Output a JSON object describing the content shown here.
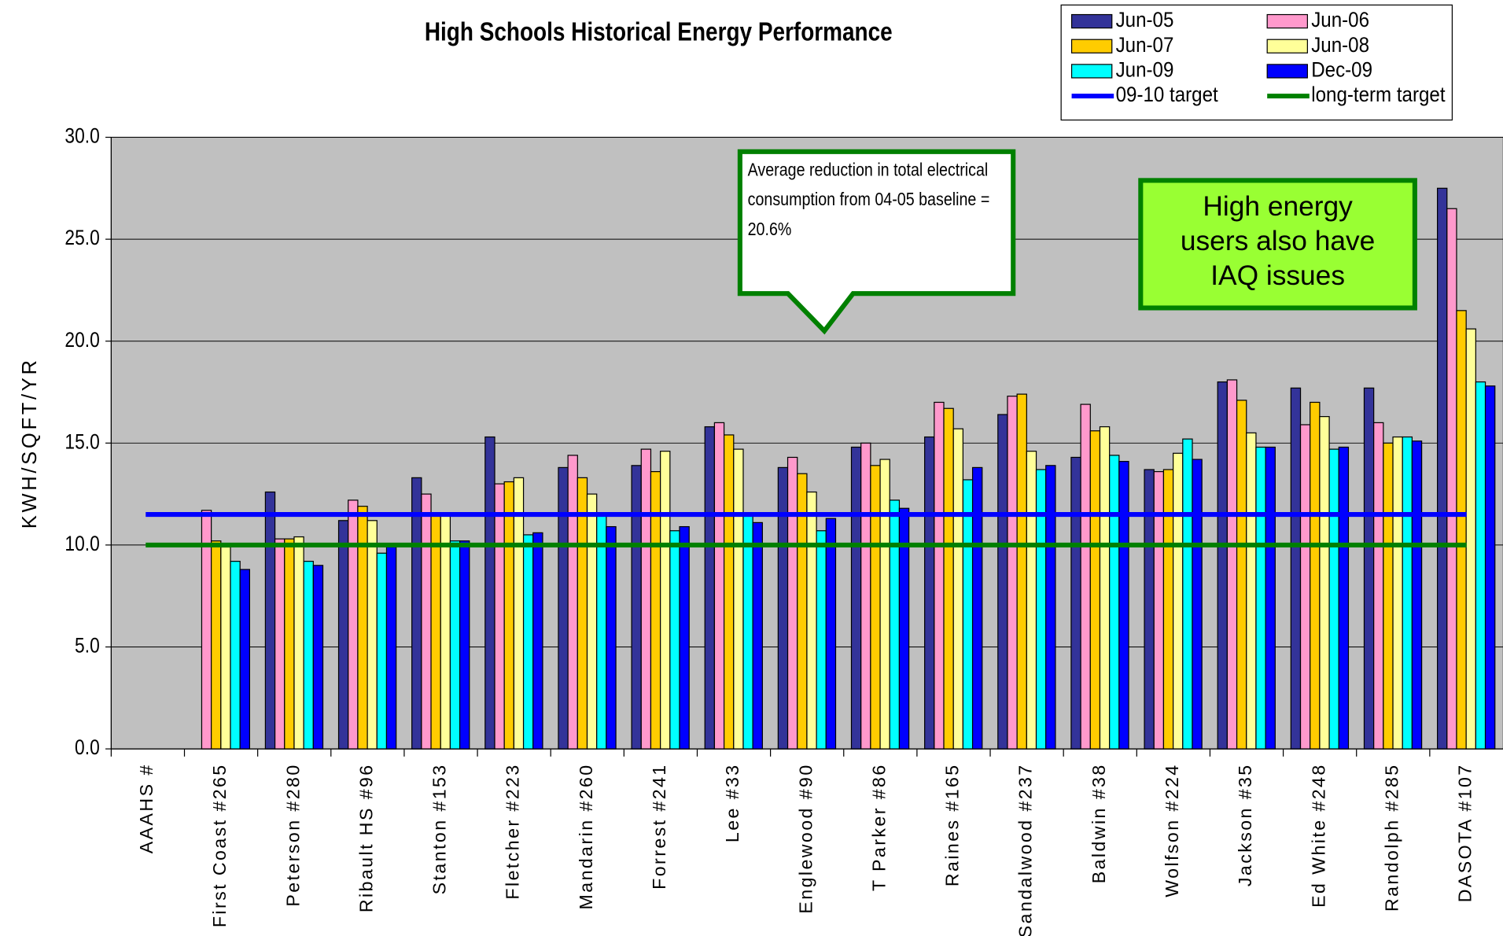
{
  "chart_data": {
    "type": "bar",
    "title": "High Schools Historical Energy Performance",
    "y_label": "KWH/SQFT/YR",
    "categories": [
      "AAAHS #",
      "First Coast #265",
      "Peterson #280",
      "Ribault HS #96",
      "Stanton #153",
      "Fletcher #223",
      "Mandarin #260",
      "Forrest #241",
      "Lee #33",
      "Englewood #90",
      "T Parker #86",
      "Raines #165",
      "Sandalwood #237",
      "Baldwin #38",
      "Wolfson #224",
      "Jackson #35",
      "Ed White #248",
      "Randolph #285",
      "DASOTA #107"
    ],
    "series": [
      {
        "name": "Jun-05",
        "color": "#333399",
        "values": [
          null,
          null,
          12.6,
          11.2,
          13.3,
          15.3,
          13.8,
          13.9,
          15.8,
          13.8,
          14.8,
          15.3,
          16.4,
          14.3,
          13.7,
          18.0,
          17.7,
          17.7,
          27.5
        ]
      },
      {
        "name": "Jun-06",
        "color": "#ff99cc",
        "values": [
          null,
          11.7,
          10.3,
          12.2,
          12.5,
          13.0,
          14.4,
          14.7,
          16.0,
          14.3,
          15.0,
          17.0,
          17.3,
          16.9,
          13.6,
          18.1,
          15.9,
          16.0,
          26.5
        ]
      },
      {
        "name": "Jun-07",
        "color": "#ffcc00",
        "values": [
          null,
          10.2,
          10.3,
          11.9,
          11.5,
          13.1,
          13.3,
          13.6,
          15.4,
          13.5,
          13.9,
          16.7,
          17.4,
          15.6,
          13.7,
          17.1,
          17.0,
          15.0,
          21.5
        ]
      },
      {
        "name": "Jun-08",
        "color": "#ffff99",
        "values": [
          null,
          9.9,
          10.4,
          11.2,
          11.5,
          13.3,
          12.5,
          14.6,
          14.7,
          12.6,
          14.2,
          15.7,
          14.6,
          15.8,
          14.5,
          15.5,
          16.3,
          15.3,
          20.6
        ]
      },
      {
        "name": "Jun-09",
        "color": "#00ffff",
        "values": [
          null,
          9.2,
          9.2,
          9.6,
          10.2,
          10.5,
          11.5,
          10.7,
          11.5,
          10.7,
          12.2,
          13.2,
          13.7,
          14.4,
          15.2,
          14.8,
          14.7,
          15.3,
          18.0
        ]
      },
      {
        "name": "Dec-09",
        "color": "#0000ff",
        "values": [
          null,
          8.8,
          9.0,
          9.9,
          10.2,
          10.6,
          10.9,
          10.9,
          11.1,
          11.3,
          11.8,
          13.8,
          13.9,
          14.1,
          14.2,
          14.8,
          14.8,
          15.1,
          17.8
        ]
      }
    ],
    "target_lines": [
      {
        "name": "09-10 target",
        "color": "#0000ff",
        "value": 11.5
      },
      {
        "name": "long-term target",
        "color": "#008000",
        "value": 10.0
      }
    ],
    "ylim": [
      0,
      30
    ],
    "yticks": [
      {
        "value": 0,
        "label": "0.0"
      },
      {
        "value": 5,
        "label": "5.0"
      },
      {
        "value": 10,
        "label": "10.0"
      },
      {
        "value": 15,
        "label": "15.0"
      },
      {
        "value": 20,
        "label": "20.0"
      },
      {
        "value": 25,
        "label": "25.0"
      },
      {
        "value": 30,
        "label": "30.0"
      }
    ],
    "grid": true,
    "legend_position": "top-right",
    "annotations": [
      {
        "lines": [
          "Average reduction in total electrical",
          "consumption from 04-05 baseline =",
          "20.6%"
        ]
      },
      {
        "lines": [
          "High energy",
          "users also have",
          "IAQ issues"
        ]
      }
    ]
  }
}
